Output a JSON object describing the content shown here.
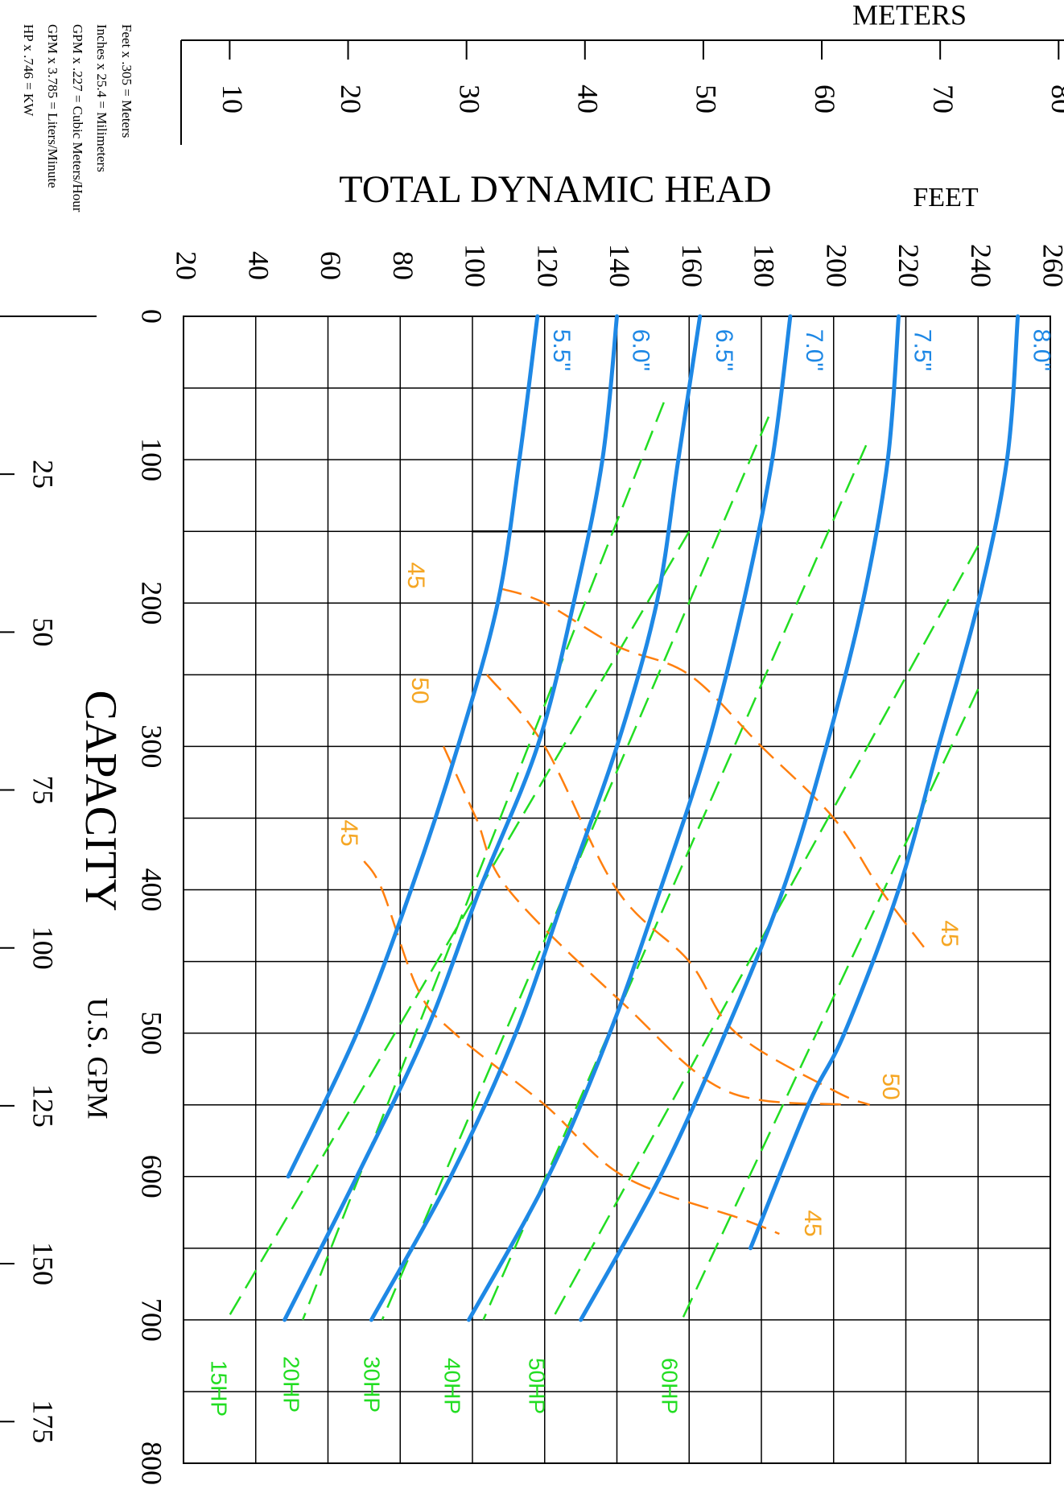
{
  "chart_data": {
    "type": "line",
    "title": "TOTAL DYNAMIC HEAD",
    "xlabel": "CAPACITY",
    "xlabel_units": "U.S. GPM",
    "ylabel_primary_units": "FEET",
    "ylabel_secondary_units": "METERS",
    "x_range": [
      0,
      800
    ],
    "x_ticks": [
      0,
      100,
      200,
      300,
      400,
      500,
      600,
      700,
      800
    ],
    "y_range": [
      20,
      260
    ],
    "y_ticks": [
      20,
      40,
      60,
      80,
      100,
      120,
      140,
      160,
      180,
      200,
      220,
      240,
      260
    ],
    "meters_ticks": [
      10,
      20,
      30,
      40,
      50,
      60,
      70,
      80
    ],
    "m3h_ticks": [
      25,
      50,
      75,
      100,
      125,
      150,
      175
    ],
    "grid": true,
    "conversions": [
      "Feet x .305 = Meters",
      "Inches x 25.4 = Milimeters",
      "GPM x .227 = Cubic Meters/Hour",
      "GPM x 3.785 = Liters/Minute",
      "HP x .746 = KW"
    ],
    "impeller_curves": [
      {
        "name": "5.5\"",
        "points": [
          [
            0,
            118
          ],
          [
            100,
            113
          ],
          [
            200,
            107
          ],
          [
            300,
            96
          ],
          [
            400,
            83
          ],
          [
            500,
            68
          ],
          [
            600,
            49
          ]
        ]
      },
      {
        "name": "6.0\"",
        "points": [
          [
            0,
            140
          ],
          [
            100,
            136
          ],
          [
            200,
            128
          ],
          [
            300,
            118
          ],
          [
            400,
            102
          ],
          [
            500,
            87
          ],
          [
            600,
            68
          ],
          [
            700,
            48
          ]
        ]
      },
      {
        "name": "6.5\"",
        "points": [
          [
            0,
            163
          ],
          [
            100,
            157
          ],
          [
            200,
            151
          ],
          [
            300,
            140
          ],
          [
            400,
            126
          ],
          [
            500,
            112
          ],
          [
            600,
            94
          ],
          [
            700,
            72
          ]
        ]
      },
      {
        "name": "7.0\"",
        "points": [
          [
            0,
            188
          ],
          [
            100,
            183
          ],
          [
            200,
            175
          ],
          [
            300,
            165
          ],
          [
            400,
            152
          ],
          [
            500,
            138
          ],
          [
            600,
            121
          ],
          [
            700,
            99
          ]
        ]
      },
      {
        "name": "7.5\"",
        "points": [
          [
            0,
            218
          ],
          [
            100,
            215
          ],
          [
            200,
            208
          ],
          [
            300,
            198
          ],
          [
            400,
            186
          ],
          [
            500,
            170
          ],
          [
            600,
            152
          ],
          [
            700,
            130
          ]
        ]
      },
      {
        "name": "8.0\"",
        "points": [
          [
            0,
            251
          ],
          [
            100,
            248
          ],
          [
            200,
            240
          ],
          [
            300,
            229
          ],
          [
            400,
            218
          ],
          [
            500,
            203
          ],
          [
            550,
            193
          ],
          [
            650,
            177
          ]
        ]
      }
    ],
    "horsepower_curves": [
      {
        "name": "15HP",
        "points": [
          [
            150,
            160
          ],
          [
            700,
            32
          ]
        ]
      },
      {
        "name": "20HP",
        "points": [
          [
            60,
            153
          ],
          [
            700,
            53
          ]
        ]
      },
      {
        "name": "30HP",
        "points": [
          [
            70,
            182
          ],
          [
            700,
            75
          ]
        ]
      },
      {
        "name": "40HP",
        "points": [
          [
            90,
            209
          ],
          [
            700,
            103
          ]
        ]
      },
      {
        "name": "50HP",
        "points": [
          [
            160,
            240
          ],
          [
            700,
            122
          ]
        ]
      },
      {
        "name": "60HP",
        "points": [
          [
            260,
            240
          ],
          [
            700,
            158
          ]
        ]
      }
    ],
    "efficiency_curves": [
      {
        "name": "45",
        "points": [
          [
            190,
            108
          ],
          [
            200,
            120
          ],
          [
            230,
            140
          ],
          [
            250,
            160
          ],
          [
            300,
            180
          ],
          [
            350,
            200
          ],
          [
            400,
            213
          ],
          [
            440,
            225
          ]
        ]
      },
      {
        "name": "50",
        "points": [
          [
            250,
            104
          ],
          [
            300,
            120
          ],
          [
            400,
            140
          ],
          [
            450,
            160
          ],
          [
            500,
            173
          ],
          [
            540,
            200
          ],
          [
            550,
            210
          ]
        ]
      },
      {
        "name": "50",
        "points": [
          [
            300,
            92
          ],
          [
            350,
            101
          ],
          [
            400,
            110
          ],
          [
            480,
            142
          ],
          [
            540,
            170
          ],
          [
            550,
            203
          ]
        ]
      },
      {
        "name": "45",
        "points": [
          [
            380,
            70
          ],
          [
            400,
            75
          ],
          [
            470,
            85
          ],
          [
            500,
            95
          ],
          [
            550,
            120
          ],
          [
            600,
            142
          ],
          [
            630,
            175
          ],
          [
            640,
            185
          ]
        ]
      }
    ],
    "reference_line": {
      "points": [
        [
          150,
          100
        ],
        [
          150,
          160
        ]
      ]
    }
  }
}
